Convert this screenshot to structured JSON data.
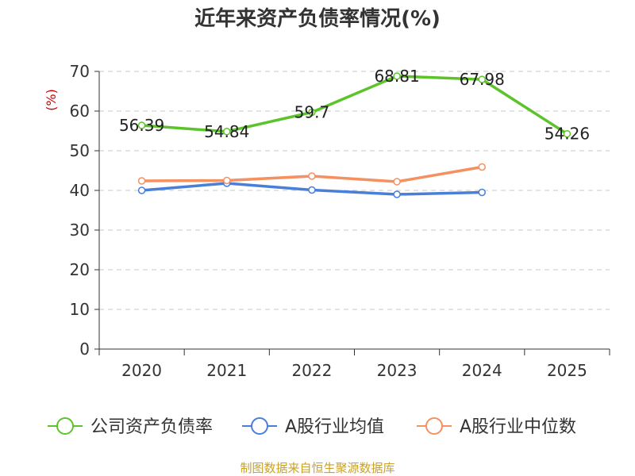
{
  "chart_data": {
    "type": "line",
    "title": "近年来资产负债率情况(%)",
    "ylabel": "(%)",
    "xlabel": "",
    "categories": [
      "2020",
      "2021",
      "2022",
      "2023",
      "2024",
      "2025"
    ],
    "ylim": [
      0,
      70
    ],
    "yticks": [
      0,
      10,
      20,
      30,
      40,
      50,
      60,
      70
    ],
    "grid": true,
    "legend_position": "bottom",
    "series": [
      {
        "name": "公司资产负债率",
        "color": "#5cc42a",
        "values": [
          56.39,
          54.84,
          59.7,
          68.81,
          67.98,
          54.26
        ],
        "labels": [
          "56.39",
          "54.84",
          "59.7",
          "68.81",
          "67.98",
          "54.26"
        ],
        "show_labels": true
      },
      {
        "name": "A股行业均值",
        "color": "#4a7fd9",
        "values": [
          40.0,
          41.8,
          40.1,
          39.0,
          39.5,
          null
        ],
        "show_labels": false
      },
      {
        "name": "A股行业中位数",
        "color": "#f59060",
        "values": [
          42.4,
          42.5,
          43.6,
          42.2,
          45.9,
          null
        ],
        "show_labels": false
      }
    ]
  },
  "footer": {
    "source": "制图数据来自恒生聚源数据库"
  }
}
